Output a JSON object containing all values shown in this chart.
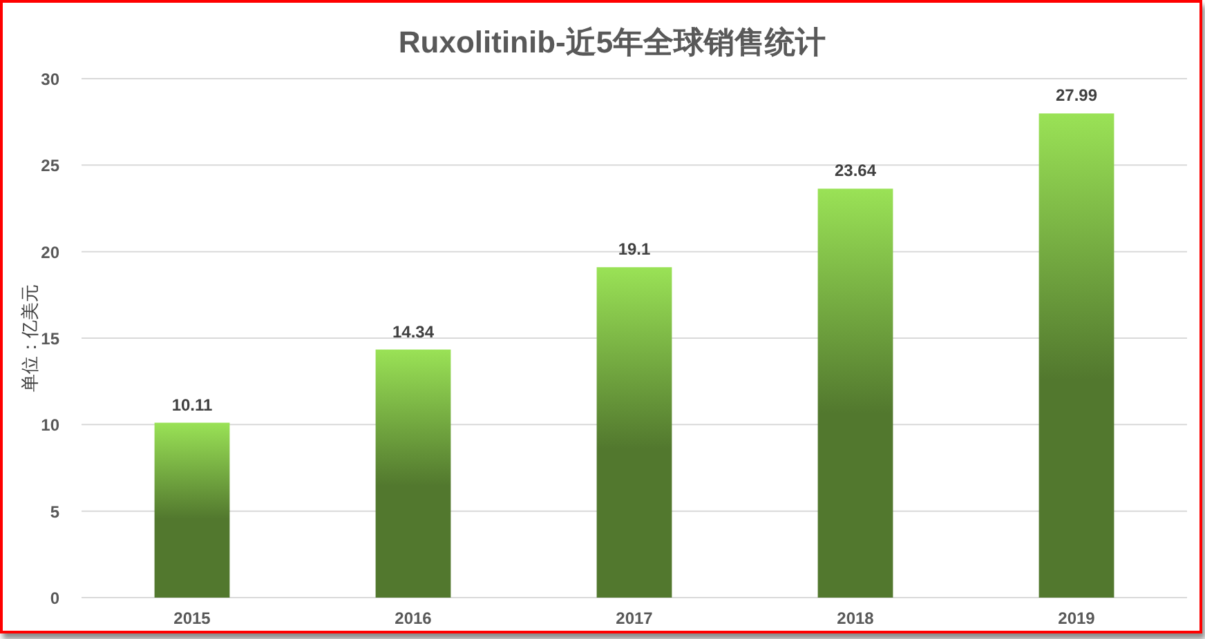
{
  "chart_data": {
    "type": "bar",
    "title": "Ruxolitinib-近5年全球销售统计",
    "ylabel": "单位：亿美元",
    "categories": [
      "2015",
      "2016",
      "2017",
      "2018",
      "2019"
    ],
    "values": [
      10.11,
      14.34,
      19.1,
      23.64,
      27.99
    ],
    "color": "#52782e",
    "ylim": [
      0,
      30
    ],
    "yticks": [
      0,
      5,
      10,
      15,
      20,
      25,
      30
    ],
    "grid": "y",
    "data_labels": true
  }
}
